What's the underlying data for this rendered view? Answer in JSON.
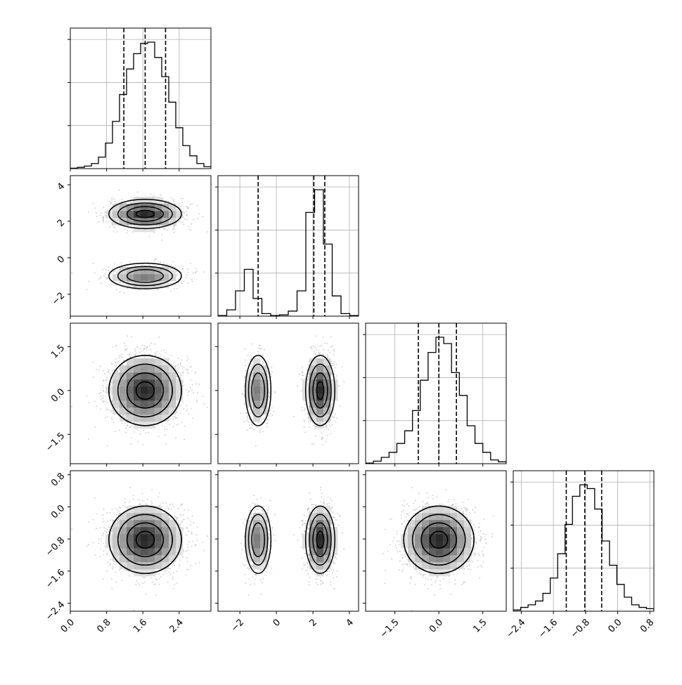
{
  "chart_data": {
    "type": "corner",
    "variables": 4,
    "tick_labels": {
      "x": [
        [
          "0.0",
          "0.8",
          "1.6",
          "2.4"
        ],
        [
          "−2",
          "0",
          "2",
          "4"
        ],
        [
          "−1.5",
          "0.0",
          "1.5"
        ],
        [
          "−2.4",
          "−1.6",
          "−0.8",
          "0.0",
          "0.8"
        ]
      ],
      "y": [
        [],
        [
          "−2",
          "0",
          "2",
          "4"
        ],
        [
          "−1.5",
          "0.0",
          "1.5"
        ],
        [
          "−2.4",
          "−1.6",
          "−0.8",
          "0.0",
          "0.8"
        ]
      ]
    },
    "axes": [
      {
        "range": [
          0.0,
          3.1
        ],
        "ticks": [
          0.0,
          0.8,
          1.6,
          2.4
        ]
      },
      {
        "range": [
          -3.2,
          4.5
        ],
        "ticks": [
          -2,
          0,
          2,
          4
        ]
      },
      {
        "range": [
          -2.5,
          2.3
        ],
        "ticks": [
          -1.5,
          0.0,
          1.5
        ]
      },
      {
        "range": [
          -2.6,
          0.9
        ],
        "ticks": [
          -2.4,
          -1.6,
          -0.8,
          0.0,
          0.8
        ]
      }
    ],
    "quantiles": [
      [
        1.18,
        1.65,
        2.1
      ],
      [
        -1.0,
        2.05,
        2.65
      ],
      [
        -0.7,
        0.0,
        0.6
      ],
      [
        -1.28,
        -0.82,
        -0.4
      ]
    ],
    "histograms": [
      {
        "bins": [
          0.0,
          3.1
        ],
        "counts": [
          0.3,
          1,
          2,
          4,
          9,
          20,
          37,
          58,
          78,
          90,
          98,
          99,
          87,
          72,
          52,
          32,
          18,
          10,
          4,
          1.5
        ]
      },
      {
        "bins": [
          -3.2,
          4.5
        ],
        "counts": [
          0.5,
          5,
          20,
          37,
          14,
          2,
          0.5,
          1,
          4,
          20,
          82,
          100,
          57,
          16,
          2,
          0.5
        ]
      },
      {
        "bins": [
          -2.5,
          2.3
        ],
        "counts": [
          0.5,
          2,
          5,
          9,
          16,
          26,
          42,
          66,
          88,
          100,
          95,
          72,
          54,
          30,
          16,
          9,
          3,
          1.5
        ]
      },
      {
        "bins": [
          -2.6,
          0.9
        ],
        "counts": [
          1,
          3,
          5,
          8,
          14,
          26,
          45,
          68,
          90,
          99,
          96,
          80,
          55,
          36,
          21,
          11,
          5,
          3,
          2
        ]
      }
    ],
    "clusters": [
      {
        "weight": 0.65,
        "mean": [
          1.65,
          2.4,
          0.0,
          -0.82
        ],
        "sd": [
          0.4,
          0.4,
          0.6,
          0.42
        ]
      },
      {
        "weight": 0.35,
        "mean": [
          1.65,
          -1.0,
          0.0,
          -0.82
        ],
        "sd": [
          0.4,
          0.35,
          0.6,
          0.42
        ]
      }
    ],
    "colors": {
      "line": "#000000",
      "scatter": "#999999",
      "grid": "#b0b0b0"
    },
    "grid": true
  }
}
